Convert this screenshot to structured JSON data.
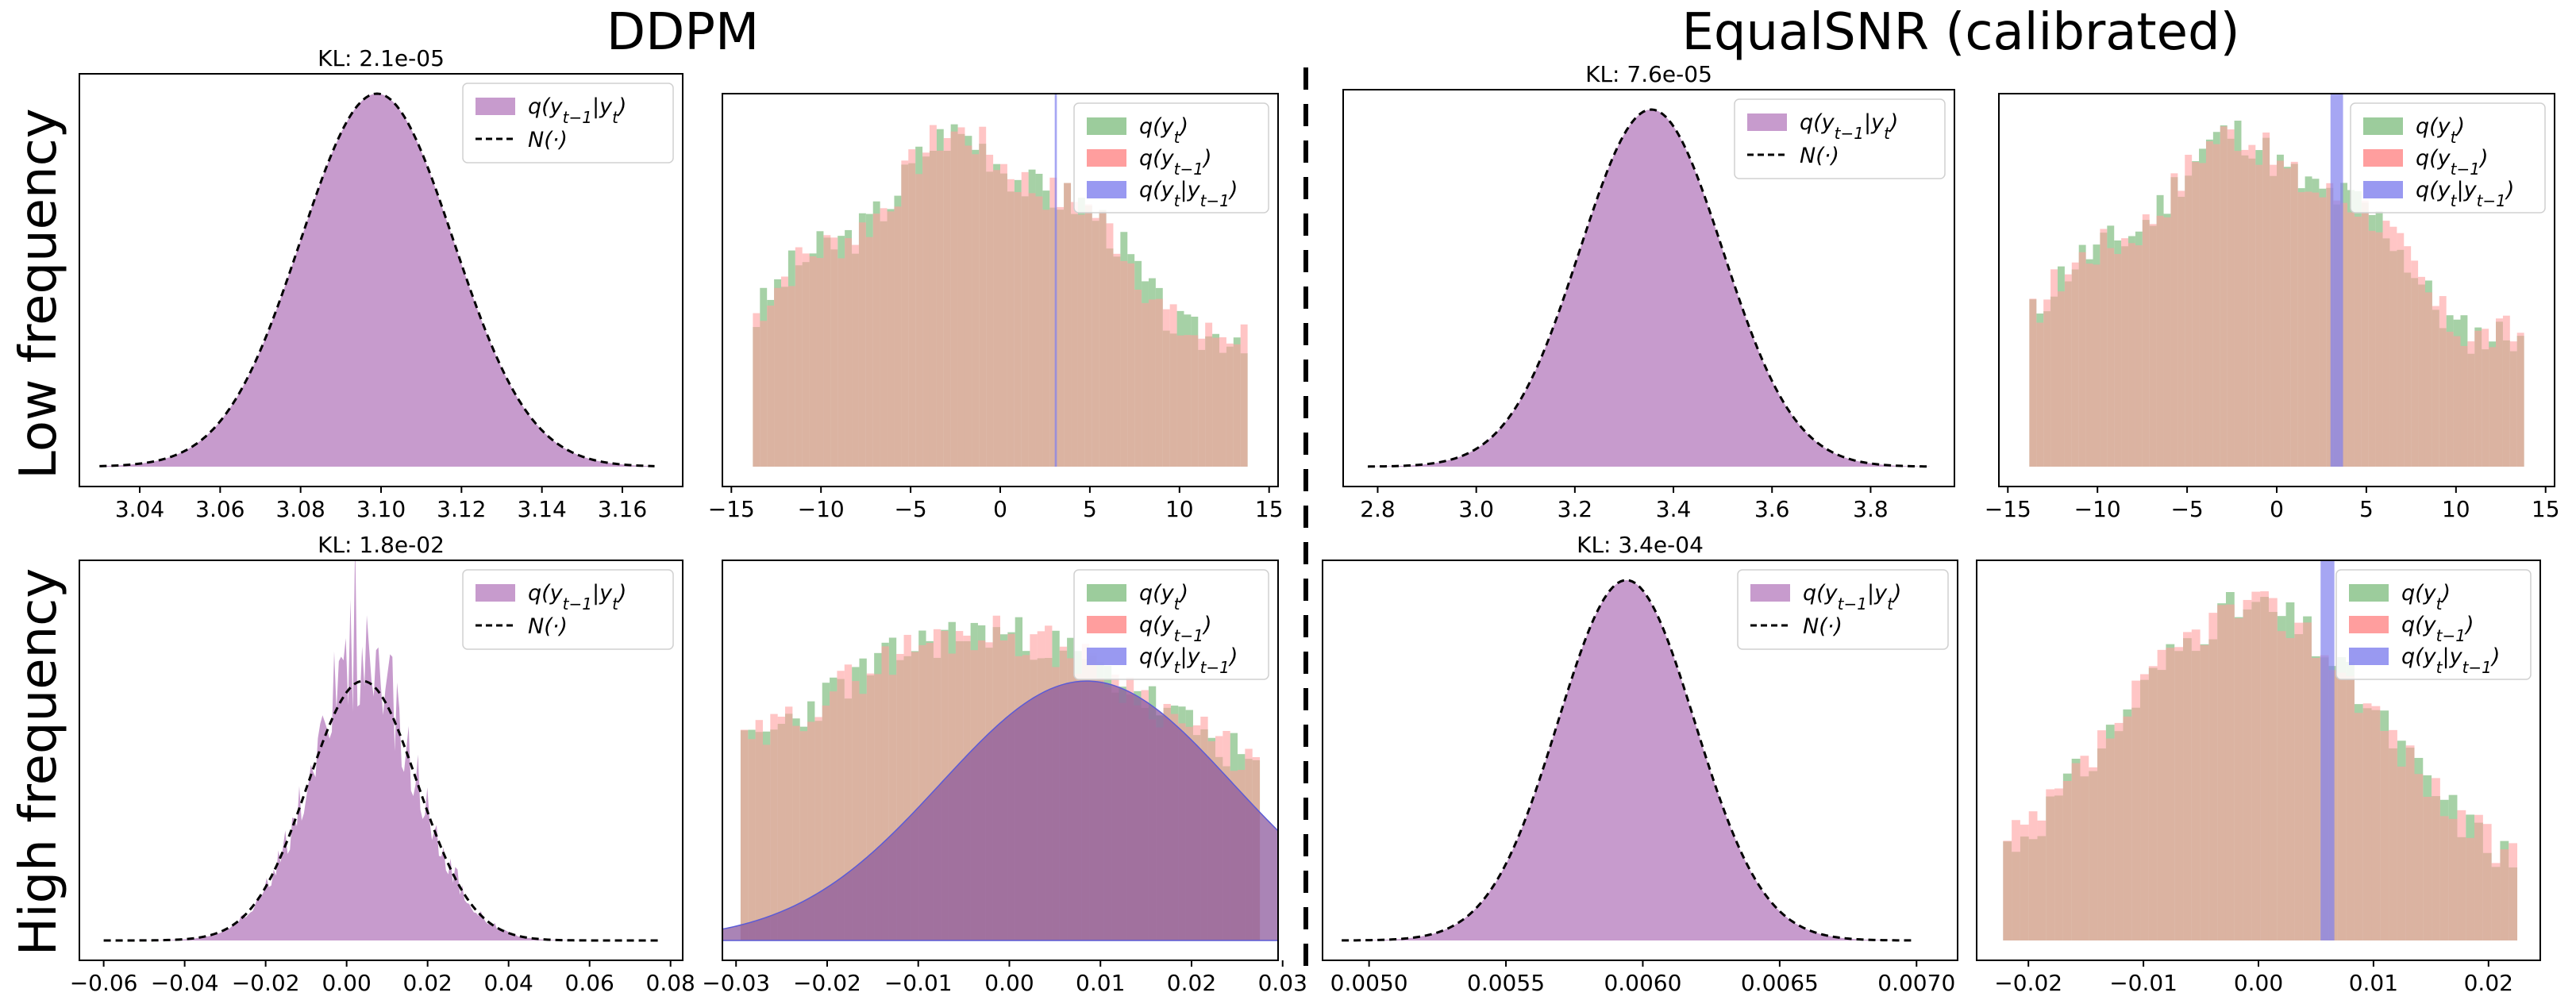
{
  "titles": {
    "left": "DDPM",
    "right": "EqualSNR (calibrated)"
  },
  "row_labels": {
    "top": "Low frequency",
    "bottom": "High frequency"
  },
  "legend_labels": {
    "posterior": "q(y_{t-1}|y_t)",
    "normal": "N(·)",
    "qt": "q(y_t)",
    "qt1": "q(y_{t-1})",
    "qcond": "q(y_t|y_{t-1})"
  },
  "colors": {
    "posterior": "#c79bcd",
    "green": "#9ccc9c",
    "red": "#ff9e9e",
    "blue": "#8080ee",
    "brown": "#bd876a",
    "purple_overlap": "#8d5b9d"
  },
  "chart_data": [
    {
      "id": "ddpm_low_posterior",
      "type": "area",
      "title": "KL: 2.1e-05",
      "xlim": [
        3.025,
        3.175
      ],
      "xticks": [
        "3.04",
        "3.06",
        "3.08",
        "3.10",
        "3.12",
        "3.14",
        "3.16"
      ],
      "xtick_values": [
        3.04,
        3.06,
        3.08,
        3.1,
        3.12,
        3.14,
        3.16
      ],
      "series": [
        {
          "name": "q(y_{t-1}|y_t)",
          "kind": "gaussian-fill",
          "mean": 3.099,
          "std": 0.019,
          "xmin": 3.03,
          "xmax": 3.168
        },
        {
          "name": "N(·)",
          "kind": "gaussian-dashed",
          "mean": 3.099,
          "std": 0.019,
          "xmin": 3.03,
          "xmax": 3.168
        }
      ],
      "legend": "top-right"
    },
    {
      "id": "ddpm_low_hist",
      "type": "bar",
      "xlim": [
        -15.5,
        15.5
      ],
      "xticks": [
        "−15",
        "−10",
        "−5",
        "0",
        "5",
        "10",
        "15"
      ],
      "xtick_values": [
        -15,
        -10,
        -5,
        0,
        5,
        10,
        15
      ],
      "series": [
        {
          "name": "q(y_t)",
          "kind": "hist",
          "xmin": -13.8,
          "xmax": 13.8,
          "bins": 70,
          "shape": "lowfreq",
          "seed": 3
        },
        {
          "name": "q(y_{t-1})",
          "kind": "hist",
          "xmin": -13.8,
          "xmax": 13.8,
          "bins": 70,
          "shape": "lowfreq",
          "seed": 7
        },
        {
          "name": "q(y_t|y_{t-1})",
          "kind": "spike",
          "center": 3.1,
          "width": 0.12
        }
      ],
      "legend": "top-right"
    },
    {
      "id": "equalsnr_low_posterior",
      "type": "area",
      "title": "KL: 7.6e-05",
      "xlim": [
        2.73,
        3.97
      ],
      "xticks": [
        "2.8",
        "3.0",
        "3.2",
        "3.4",
        "3.6",
        "3.8"
      ],
      "xtick_values": [
        2.8,
        3.0,
        3.2,
        3.4,
        3.6,
        3.8
      ],
      "series": [
        {
          "name": "q(y_{t-1}|y_t)",
          "kind": "gaussian-fill",
          "mean": 3.355,
          "std": 0.145,
          "xmin": 2.78,
          "xmax": 3.92
        },
        {
          "name": "N(·)",
          "kind": "gaussian-dashed",
          "mean": 3.355,
          "std": 0.145,
          "xmin": 2.78,
          "xmax": 3.92
        }
      ],
      "legend": "top-right"
    },
    {
      "id": "equalsnr_low_hist",
      "type": "bar",
      "xlim": [
        -15.5,
        15.5
      ],
      "xticks": [
        "−15",
        "−10",
        "−5",
        "0",
        "5",
        "10",
        "15"
      ],
      "xtick_values": [
        -15,
        -10,
        -5,
        0,
        5,
        10,
        15
      ],
      "series": [
        {
          "name": "q(y_t)",
          "kind": "hist",
          "xmin": -13.8,
          "xmax": 13.8,
          "bins": 70,
          "shape": "lowfreq",
          "seed": 11
        },
        {
          "name": "q(y_{t-1})",
          "kind": "hist",
          "xmin": -13.8,
          "xmax": 13.8,
          "bins": 70,
          "shape": "lowfreq",
          "seed": 17
        },
        {
          "name": "q(y_t|y_{t-1})",
          "kind": "spike",
          "center": 3.35,
          "width": 0.7
        }
      ],
      "legend": "top-right"
    },
    {
      "id": "ddpm_high_posterior",
      "type": "area",
      "title": "KL: 1.8e-02",
      "xlim": [
        -0.066,
        0.083
      ],
      "xticks": [
        "−0.06",
        "−0.04",
        "−0.02",
        "0.00",
        "0.02",
        "0.04",
        "0.06",
        "0.08"
      ],
      "xtick_values": [
        -0.06,
        -0.04,
        -0.02,
        0.0,
        0.02,
        0.04,
        0.06,
        0.08
      ],
      "series": [
        {
          "name": "q(y_{t-1}|y_t)",
          "kind": "gaussian-fill-noisy",
          "mean": 0.004,
          "std": 0.0135,
          "xmin": -0.06,
          "xmax": 0.078
        },
        {
          "name": "N(·)",
          "kind": "gaussian-dashed",
          "mean": 0.004,
          "std": 0.0135,
          "xmin": -0.06,
          "xmax": 0.078
        }
      ],
      "legend": "top-right"
    },
    {
      "id": "ddpm_high_hist",
      "type": "bar",
      "xlim": [
        -0.0315,
        0.0295
      ],
      "xticks": [
        "−0.03",
        "−0.02",
        "−0.01",
        "0.00",
        "0.01",
        "0.02",
        "0.03"
      ],
      "xtick_values": [
        -0.03,
        -0.02,
        -0.01,
        0.0,
        0.01,
        0.02,
        0.03
      ],
      "series": [
        {
          "name": "q(y_t)",
          "kind": "hist",
          "xmin": -0.0295,
          "xmax": 0.0275,
          "bins": 70,
          "shape": "flat",
          "seed": 23
        },
        {
          "name": "q(y_{t-1})",
          "kind": "hist",
          "xmin": -0.0295,
          "xmax": 0.0275,
          "bins": 70,
          "shape": "flat",
          "seed": 29
        },
        {
          "name": "q(y_t|y_{t-1})",
          "kind": "wide-gaussian",
          "mean": 0.0085,
          "std": 0.016
        }
      ],
      "legend": "top-right"
    },
    {
      "id": "equalsnr_high_posterior",
      "type": "area",
      "title": "KL: 3.4e-04",
      "xlim": [
        0.00483,
        0.00715
      ],
      "xticks": [
        "0.0050",
        "0.0055",
        "0.0060",
        "0.0065",
        "0.0070"
      ],
      "xtick_values": [
        0.005,
        0.0055,
        0.006,
        0.0065,
        0.007
      ],
      "series": [
        {
          "name": "q(y_{t-1}|y_t)",
          "kind": "gaussian-fill",
          "mean": 0.00594,
          "std": 0.00025,
          "xmin": 0.0049,
          "xmax": 0.00698
        },
        {
          "name": "N(·)",
          "kind": "gaussian-dashed",
          "mean": 0.00594,
          "std": 0.00025,
          "xmin": 0.0049,
          "xmax": 0.00698
        }
      ],
      "legend": "top-right"
    },
    {
      "id": "equalsnr_high_hist",
      "type": "bar",
      "xlim": [
        -0.0245,
        0.0245
      ],
      "xticks": [
        "−0.02",
        "−0.01",
        "0.00",
        "0.01",
        "0.02"
      ],
      "xtick_values": [
        -0.02,
        -0.01,
        0.0,
        0.01,
        0.02
      ],
      "series": [
        {
          "name": "q(y_t)",
          "kind": "hist",
          "xmin": -0.0222,
          "xmax": 0.0225,
          "bins": 60,
          "shape": "peaked",
          "seed": 31
        },
        {
          "name": "q(y_{t-1})",
          "kind": "hist",
          "xmin": -0.0222,
          "xmax": 0.0225,
          "bins": 60,
          "shape": "peaked",
          "seed": 37
        },
        {
          "name": "q(y_t|y_{t-1})",
          "kind": "spike",
          "center": 0.006,
          "width": 0.0012
        }
      ],
      "legend": "top-right"
    }
  ]
}
